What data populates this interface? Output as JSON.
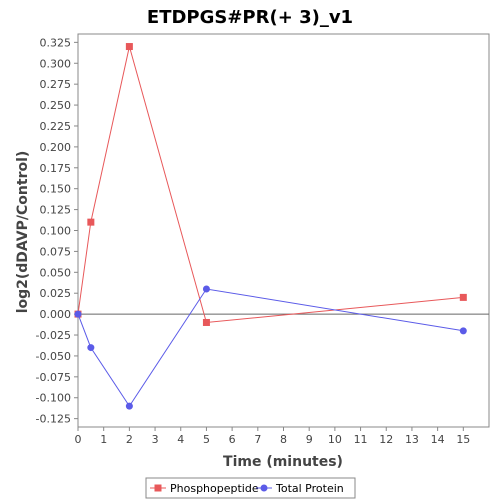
{
  "chart_data": {
    "type": "line",
    "title": "ETDPGS#PR(+ 3)_v1",
    "xlabel": "Time (minutes)",
    "ylabel": "log2(dDAVP/Control)",
    "xlim": [
      0,
      16
    ],
    "ylim": [
      -0.135,
      0.335
    ],
    "xticks": [
      "0",
      "1",
      "2",
      "3",
      "4",
      "5",
      "6",
      "7",
      "8",
      "9",
      "10",
      "11",
      "12",
      "13",
      "14",
      "15"
    ],
    "yticks": [
      "-0.125",
      "-0.100",
      "-0.075",
      "-0.050",
      "-0.025",
      "0.000",
      "0.025",
      "0.050",
      "0.075",
      "0.100",
      "0.125",
      "0.150",
      "0.175",
      "0.200",
      "0.225",
      "0.250",
      "0.275",
      "0.300",
      "0.325"
    ],
    "legend_position": "bottom",
    "grid": false,
    "series": [
      {
        "name": "Phosphopeptide",
        "color": "#e8585a",
        "marker": "square",
        "x": [
          0,
          0.5,
          2,
          5,
          15
        ],
        "y": [
          0.0,
          0.11,
          0.32,
          -0.01,
          0.02
        ]
      },
      {
        "name": "Total Protein",
        "color": "#5b5be8",
        "marker": "circle",
        "x": [
          0,
          0.5,
          2,
          5,
          15
        ],
        "y": [
          0.0,
          -0.04,
          -0.11,
          0.03,
          -0.02
        ]
      }
    ]
  }
}
